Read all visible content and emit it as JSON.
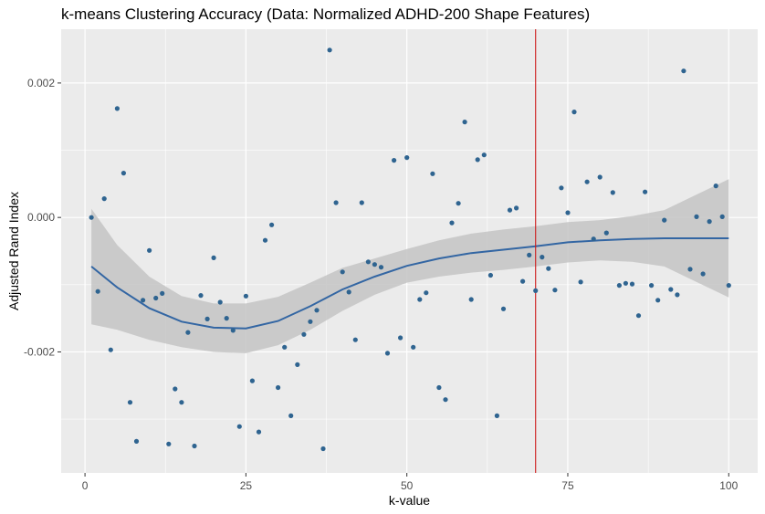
{
  "chart_data": {
    "type": "scatter",
    "title": "k-means Clustering Accuracy (Data: Normalized ADHD-200 Shape Features)",
    "xlabel": "k-value",
    "ylabel": "Adjusted Rand Index",
    "xlim": [
      -3.7,
      104.5
    ],
    "ylim": [
      -0.0038,
      0.0028
    ],
    "xticks": [
      0,
      25,
      50,
      75,
      100
    ],
    "xtick_labels": [
      "0",
      "25",
      "50",
      "75",
      "100"
    ],
    "yticks": [
      -0.002,
      0.0,
      0.002
    ],
    "ytick_labels": [
      "-0.002",
      "0.000",
      "0.002"
    ],
    "grid": true,
    "colors": {
      "panel_background": "#ebebeb",
      "grid": "#ffffff",
      "points": "#2f6490",
      "smooth_line": "#3366a3",
      "confidence_band": "#c4c4c4",
      "vline": "#cc1a1a"
    },
    "vline_x": 70,
    "series": [
      {
        "x": [
          1,
          2,
          3,
          4,
          5,
          6,
          7,
          8,
          9,
          10,
          11,
          12,
          13,
          14,
          15,
          16,
          17,
          18,
          19,
          20,
          21,
          22,
          23,
          24,
          25,
          26,
          27,
          28,
          29,
          30,
          31,
          32,
          33,
          34,
          35,
          36,
          37,
          38,
          39,
          40,
          41,
          42,
          43,
          44,
          45,
          46,
          47,
          48,
          49,
          50,
          51,
          52,
          53,
          54,
          55,
          56,
          57,
          58,
          59,
          60,
          61,
          62,
          63,
          64,
          65,
          66,
          67,
          68,
          69,
          70,
          71,
          72,
          73,
          74,
          75,
          76,
          77,
          78,
          79,
          80,
          81,
          82,
          83,
          84,
          85,
          86,
          87,
          88,
          89,
          90,
          91,
          92,
          93,
          94,
          95,
          96,
          97,
          98,
          99,
          100
        ],
        "y": [
          0.0,
          -0.0011,
          0.00028,
          -0.00197,
          0.00162,
          0.00066,
          -0.00275,
          -0.00333,
          -0.00123,
          -0.00049,
          -0.0012,
          -0.00113,
          -0.00337,
          -0.00255,
          -0.00275,
          -0.00171,
          -0.0034,
          -0.00116,
          -0.00151,
          -0.0006,
          -0.00126,
          -0.0015,
          -0.00168,
          -0.00311,
          -0.00117,
          -0.00243,
          -0.00319,
          -0.00034,
          -0.00011,
          -0.00253,
          -0.00193,
          -0.00295,
          -0.00219,
          -0.00174,
          -0.00155,
          -0.00138,
          -0.00344,
          0.00249,
          0.00022,
          -0.00081,
          -0.00111,
          -0.00182,
          0.00022,
          -0.00066,
          -0.0007,
          -0.00074,
          -0.00202,
          0.00085,
          -0.00179,
          0.00089,
          -0.00193,
          -0.00122,
          -0.00112,
          0.00065,
          -0.00253,
          -0.00271,
          -8e-05,
          0.00021,
          0.00142,
          -0.00122,
          0.00086,
          0.00093,
          -0.00086,
          -0.00295,
          -0.00136,
          0.00011,
          0.00014,
          -0.00095,
          -0.00056,
          -0.00109,
          -0.00059,
          -0.00076,
          -0.00108,
          0.00044,
          7e-05,
          0.00157,
          -0.00096,
          0.00053,
          -0.00032,
          0.0006,
          -0.00023,
          0.00037,
          -0.00101,
          -0.00098,
          -0.00099,
          -0.00146,
          0.00038,
          -0.00101,
          -0.00123,
          -4e-05,
          -0.00107,
          -0.00115,
          0.00218,
          -0.00077,
          1e-05,
          -0.00084,
          -6e-05,
          0.00047,
          1e-05,
          -0.00101
        ]
      }
    ],
    "smooth": {
      "x": [
        1,
        5,
        10,
        15,
        20,
        25,
        30,
        35,
        40,
        45,
        50,
        55,
        60,
        65,
        70,
        75,
        80,
        85,
        90,
        95,
        100
      ],
      "y": [
        -0.00073,
        -0.00104,
        -0.00135,
        -0.00155,
        -0.00164,
        -0.00165,
        -0.00154,
        -0.00132,
        -0.00107,
        -0.00088,
        -0.00072,
        -0.00061,
        -0.00053,
        -0.00048,
        -0.00043,
        -0.00037,
        -0.00034,
        -0.00032,
        -0.00031,
        -0.00031,
        -0.00031
      ],
      "lower": [
        -0.00159,
        -0.00167,
        -0.00182,
        -0.00193,
        -0.002,
        -0.00202,
        -0.0019,
        -0.00167,
        -0.00139,
        -0.00115,
        -0.00097,
        -0.00088,
        -0.00082,
        -0.00078,
        -0.00073,
        -0.00067,
        -0.00064,
        -0.00066,
        -0.00073,
        -0.00096,
        -0.00119
      ],
      "upper": [
        0.00013,
        -0.00041,
        -0.00088,
        -0.00117,
        -0.00128,
        -0.00128,
        -0.00118,
        -0.00097,
        -0.00075,
        -0.00061,
        -0.00047,
        -0.00034,
        -0.00024,
        -0.00018,
        -0.00013,
        -7e-05,
        -4e-05,
        2e-05,
        0.00011,
        0.00034,
        0.00057
      ]
    }
  }
}
